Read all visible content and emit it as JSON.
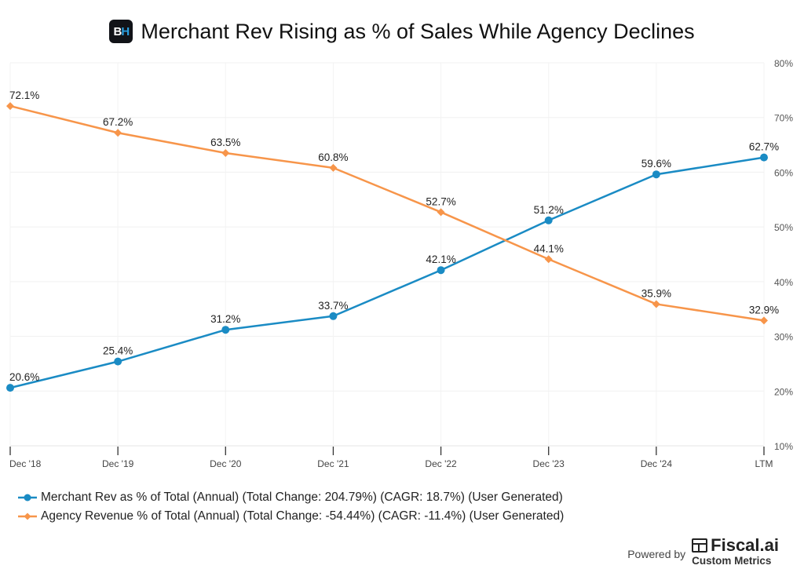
{
  "header": {
    "logo_text_left": "B",
    "logo_text_right": "H",
    "title": "Merchant Rev Rising as % of Sales While Agency Declines"
  },
  "chart_data": {
    "type": "line",
    "title": "Merchant Rev Rising as % of Sales While Agency Declines",
    "xlabel": "",
    "ylabel": "",
    "categories": [
      "Dec '18",
      "Dec '19",
      "Dec '20",
      "Dec '21",
      "Dec '22",
      "Dec '23",
      "Dec '24",
      "LTM"
    ],
    "ylim": [
      10,
      80
    ],
    "yticks": [
      10,
      20,
      30,
      40,
      50,
      60,
      70,
      80
    ],
    "ytick_labels": [
      "10%",
      "20%",
      "30%",
      "40%",
      "50%",
      "60%",
      "70%",
      "80%"
    ],
    "y_axis_side": "right",
    "grid": true,
    "legend_position": "bottom-left",
    "series": [
      {
        "name": "Merchant Rev as % of Total (Annual) (Total Change: 204.79%) (CAGR: 18.7%) (User Generated)",
        "color": "#1a8bc4",
        "marker": "circle",
        "values": [
          20.6,
          25.4,
          31.2,
          33.7,
          42.1,
          51.2,
          59.6,
          62.7
        ],
        "labels": [
          "20.6%",
          "25.4%",
          "31.2%",
          "33.7%",
          "42.1%",
          "51.2%",
          "59.6%",
          "62.7%"
        ]
      },
      {
        "name": "Agency Revenue % of Total (Annual) (Total Change: -54.44%) (CAGR: -11.4%) (User Generated)",
        "color": "#f7954a",
        "marker": "diamond",
        "values": [
          72.1,
          67.2,
          63.5,
          60.8,
          52.7,
          44.1,
          35.9,
          32.9
        ],
        "labels": [
          "72.1%",
          "67.2%",
          "63.5%",
          "60.8%",
          "52.7%",
          "44.1%",
          "35.9%",
          "32.9%"
        ]
      }
    ]
  },
  "footer": {
    "powered_by": "Powered by",
    "brand_name": "Fiscal.ai",
    "brand_sub": "Custom Metrics"
  }
}
